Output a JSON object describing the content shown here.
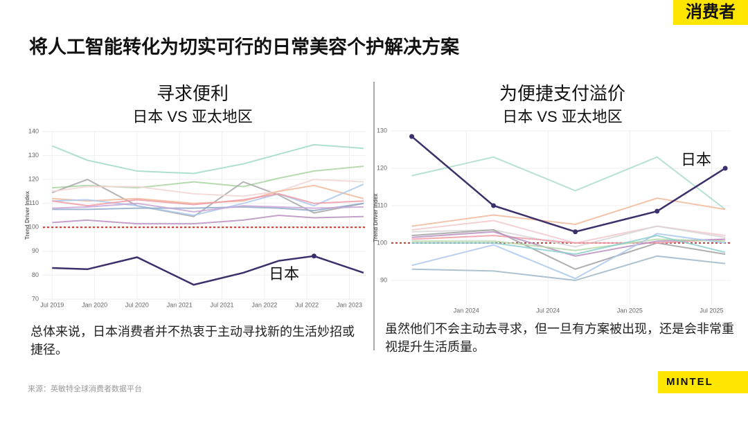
{
  "badge": "消费者",
  "headline": "将人工智能转化为切实可行的日常美容个护解决方案",
  "captions": [
    "总体来说，日本消费者并不热衷于主动寻找新的生活妙招或捷径。",
    "虽然他们不会主动去寻求，但一旦有方案被出现，还是会非常重视提升生活质量。"
  ],
  "source": "来源：英敏特全球消费者数据平台",
  "logo": "MINTEL",
  "chart_data": [
    {
      "type": "line",
      "title": "寻求便利",
      "subtitle": "日本 VS 亚太地区",
      "y_label": "Trend Driver Index",
      "x": [
        0,
        5,
        12,
        20,
        27,
        32,
        37,
        44
      ],
      "xlim": [
        -1.3,
        44.3
      ],
      "xticks": [
        {
          "value": 0,
          "label": "Jul 2019"
        },
        {
          "value": 6,
          "label": "Jan 2020"
        },
        {
          "value": 12,
          "label": "Jul 2020"
        },
        {
          "value": 18,
          "label": "Jan 2021"
        },
        {
          "value": 24,
          "label": "Jul 2021"
        },
        {
          "value": 30,
          "label": "Jan 2022"
        },
        {
          "value": 36,
          "label": "Jul 2022"
        },
        {
          "value": 42,
          "label": "Jan 2023"
        }
      ],
      "ylim": [
        70,
        140
      ],
      "yticks": [
        70,
        80,
        90,
        100,
        110,
        120,
        130,
        140
      ],
      "hline": 100,
      "hline_color": "#c0392b",
      "grid": true,
      "series": [
        {
          "color": "#9fd9c9",
          "values": [
            134,
            128,
            123.5,
            122.5,
            126.5,
            130.5,
            134.5,
            133
          ]
        },
        {
          "color": "#a8d5a0",
          "values": [
            116.5,
            117.5,
            116.5,
            119,
            117,
            120.5,
            123.5,
            125.5
          ]
        },
        {
          "color": "#a7a7a7",
          "values": [
            114.5,
            120,
            109,
            104.5,
            119,
            113.5,
            106,
            110
          ]
        },
        {
          "color": "#f2d5d5",
          "values": [
            115,
            117,
            117,
            114,
            113,
            115,
            120,
            119
          ]
        },
        {
          "color": "#f0b99a",
          "values": [
            112,
            111,
            112,
            110,
            111,
            115,
            117.5,
            112
          ]
        },
        {
          "color": "#a9c8ef",
          "values": [
            111,
            111.5,
            109,
            105,
            110,
            114,
            109,
            118
          ]
        },
        {
          "color": "#ee9aa6",
          "values": [
            111,
            109,
            111.5,
            109.5,
            111.5,
            114,
            110,
            111
          ]
        },
        {
          "color": "#8fa9c9",
          "values": [
            107.5,
            107.5,
            108,
            108,
            108.5,
            108,
            107,
            110
          ]
        },
        {
          "color": "#c7a6d6",
          "values": [
            108,
            108.5,
            110,
            106.5,
            109,
            108.5,
            108,
            108.5
          ]
        },
        {
          "color": "#b98fc0",
          "values": [
            102,
            103,
            101.5,
            101.5,
            103,
            105,
            104,
            104.5
          ]
        },
        {
          "name": "日本",
          "color": "#3d2f6b",
          "values": [
            83,
            82.5,
            87.5,
            76,
            81,
            86,
            88,
            81
          ],
          "markers": [
            6
          ],
          "highlight": true
        }
      ]
    },
    {
      "type": "line",
      "title": "为便捷支付溢价",
      "subtitle": "日本 VS 亚太地区",
      "y_label": "Trend Driver Index",
      "x": [
        -4,
        2,
        8,
        14,
        19
      ],
      "xlim": [
        -5.5,
        19.4
      ],
      "xticks": [
        {
          "value": 0,
          "label": "Jan 2024"
        },
        {
          "value": 6,
          "label": "Jul 2024"
        },
        {
          "value": 12,
          "label": "Jan 2025"
        },
        {
          "value": 18,
          "label": "Jul 2025"
        }
      ],
      "ylim": [
        83.5,
        130
      ],
      "yticks": [
        90,
        100,
        110,
        120,
        130
      ],
      "hline": 100,
      "hline_color": "#c0392b",
      "grid": true,
      "series": [
        {
          "color": "#a9dccb",
          "values": [
            118,
            123,
            114,
            123,
            109
          ]
        },
        {
          "color": "#f0b99a",
          "values": [
            104.5,
            107.5,
            105,
            112,
            109
          ]
        },
        {
          "color": "#f2c8cc",
          "values": [
            103.5,
            106,
            100,
            104.5,
            102
          ]
        },
        {
          "color": "#d6d6d6",
          "values": [
            103,
            103.5,
            99,
            104.5,
            101.5
          ]
        },
        {
          "color": "#a0a0a0",
          "values": [
            102,
            103.5,
            93,
            100,
            97
          ]
        },
        {
          "color": "#ee9aa6",
          "values": [
            101,
            102,
            100,
            100,
            101
          ]
        },
        {
          "color": "#b98fc0",
          "values": [
            101.5,
            103,
            96.5,
            100.5,
            101
          ]
        },
        {
          "color": "#b5d8a8",
          "values": [
            100.5,
            100.5,
            98,
            101,
            100.5
          ]
        },
        {
          "color": "#a9c8ef",
          "values": [
            94,
            99.5,
            90.5,
            102.5,
            100
          ]
        },
        {
          "color": "#9fb7c9",
          "values": [
            93,
            92.5,
            90,
            96.5,
            94.5
          ]
        },
        {
          "color": "#8ccfd0",
          "values": [
            100,
            100,
            97,
            102,
            97.5
          ]
        },
        {
          "name": "日本",
          "color": "#3d2f6b",
          "values": [
            128.5,
            110,
            103,
            108.5,
            120
          ],
          "markers": [
            0,
            1,
            2,
            3,
            4
          ],
          "highlight": true
        }
      ]
    }
  ]
}
